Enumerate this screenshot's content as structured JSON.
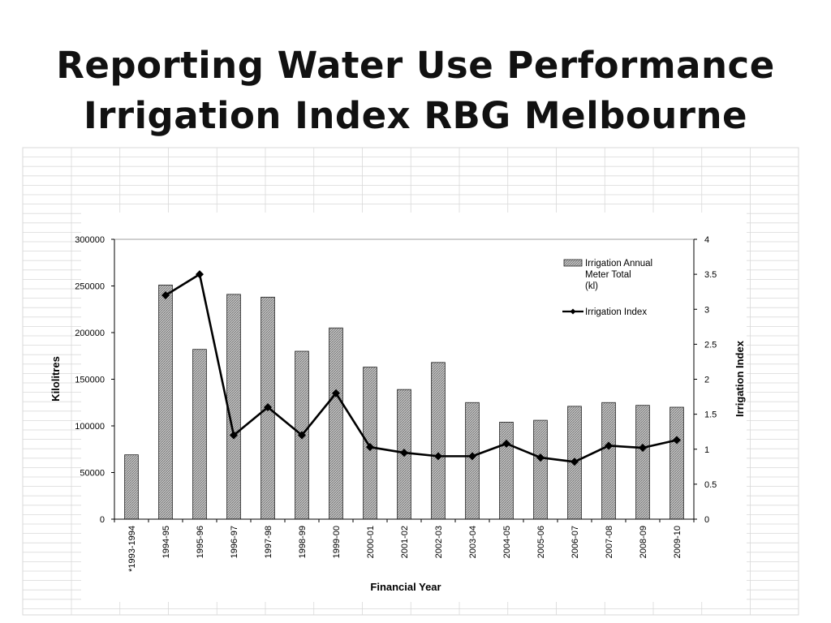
{
  "slide": {
    "title_line1": "Reporting Water Use Performance",
    "title_line2": "Irrigation Index RBG Melbourne"
  },
  "chart_data": {
    "type": "bar",
    "categories": [
      "*1993-1994",
      "1994-95",
      "1995-96",
      "1996-97",
      "1997-98",
      "1998-99",
      "1999-00",
      "2000-01",
      "2001-02",
      "2002-03",
      "2003-04",
      "2004-05",
      "2005-06",
      "2006-07",
      "2007-08",
      "2008-09",
      "2009-10"
    ],
    "series": [
      {
        "name": "Irrigation Annual Meter Total (kl)",
        "kind": "bar",
        "axis": "left",
        "values": [
          69000,
          251000,
          182000,
          241000,
          238000,
          180000,
          205000,
          163000,
          139000,
          168000,
          125000,
          104000,
          106000,
          121000,
          125000,
          122000,
          120000
        ]
      },
      {
        "name": "Irrigation Index",
        "kind": "line",
        "axis": "right",
        "values": [
          null,
          3.2,
          3.5,
          1.2,
          1.6,
          1.2,
          1.8,
          1.03,
          0.95,
          0.9,
          0.9,
          1.08,
          0.88,
          0.82,
          1.05,
          1.02,
          1.13
        ]
      }
    ],
    "legend_labels": {
      "bar_line1": "Irrigation Annual",
      "bar_line2": "Meter Total",
      "bar_line3": "(kl)",
      "line": "Irrigation Index"
    },
    "xlabel": "Financial Year",
    "ylabel": "Kilolitres",
    "y2label": "Irrigation Index",
    "ylim": [
      0,
      300000
    ],
    "y2lim": [
      0,
      4
    ],
    "yticks": [
      "0",
      "50000",
      "100000",
      "150000",
      "200000",
      "250000",
      "300000"
    ],
    "y2ticks": [
      "0",
      "0.5",
      "1",
      "1.5",
      "2",
      "2.5",
      "3",
      "3.5",
      "4"
    ],
    "legend_position": "top-right",
    "background_grid": true,
    "colors": {
      "bar_fill": "#bdbdbd",
      "bar_stroke": "#222222",
      "line": "#000000",
      "grid": "#d9d9d9"
    }
  }
}
